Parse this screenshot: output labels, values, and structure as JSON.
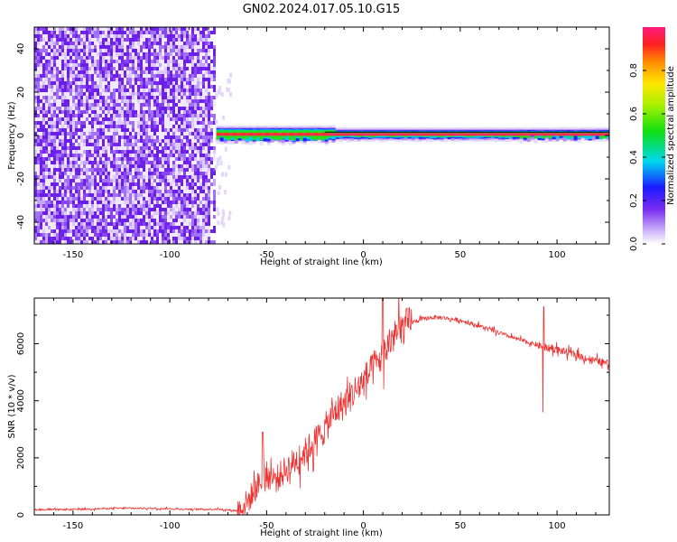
{
  "title": "GN02.2024.017.05.10.G15",
  "colors": {
    "snr_line": "#ee3333",
    "ridge_core": "#ff2a5a",
    "noise_dark": "#7a2cf0",
    "noise_light": "#d6c4fa",
    "frame": "#000000"
  },
  "chart_data": [
    {
      "type": "heatmap",
      "title": "",
      "xlabel": "Height of straight line (km)",
      "ylabel": "Frequency (Hz)",
      "xlim": [
        -170,
        127
      ],
      "ylim": [
        -50,
        50
      ],
      "x_ticks": [
        -150,
        -100,
        -50,
        0,
        50,
        100
      ],
      "y_ticks": [
        -40,
        -20,
        0,
        20,
        40
      ],
      "grid": false,
      "colorbar": {
        "label": "Normalized spectral amplitude",
        "range": [
          0,
          1
        ],
        "ticks": [
          "0.0",
          "0.2",
          "0.4",
          "0.6",
          "0.8"
        ]
      },
      "features": {
        "noise_region_x": [
          -170,
          -77
        ],
        "signal_start_x": -76,
        "ridge_frequency_hz": 0.5
      }
    },
    {
      "type": "line",
      "title": "",
      "xlabel": "Height of straight line (km)",
      "ylabel": "SNR (10 * v/v)",
      "xlim": [
        -170,
        127
      ],
      "ylim": [
        0,
        7600
      ],
      "x_ticks": [
        -150,
        -100,
        -50,
        0,
        50,
        100
      ],
      "y_ticks": [
        0,
        2000,
        4000,
        6000
      ],
      "grid": false,
      "series": [
        {
          "x": [
            -170,
            -150,
            -130,
            -110,
            -90,
            -75,
            -65,
            -60,
            -55,
            -50,
            -45,
            -40,
            -35,
            -30,
            -25,
            -20,
            -15,
            -10,
            -5,
            0,
            5,
            10,
            15,
            20,
            25,
            30,
            35,
            40,
            50,
            60,
            70,
            80,
            90,
            95,
            100,
            110,
            120,
            127
          ],
          "y": [
            180,
            190,
            230,
            230,
            200,
            200,
            150,
            450,
            1000,
            1400,
            1250,
            1600,
            1900,
            2200,
            2600,
            3000,
            3600,
            3900,
            4300,
            4700,
            5100,
            5600,
            6200,
            6550,
            6750,
            6850,
            6920,
            6920,
            6820,
            6620,
            6380,
            6150,
            5950,
            5850,
            5800,
            5600,
            5400,
            5300
          ]
        }
      ]
    }
  ]
}
